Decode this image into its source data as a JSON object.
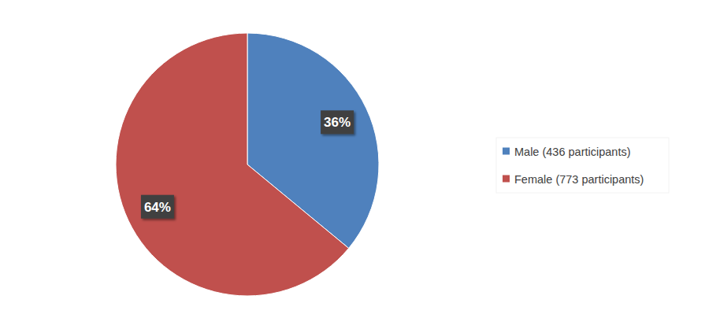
{
  "chart_data": {
    "type": "pie",
    "categories": [
      "Male (436 participants)",
      "Female (773 participants)"
    ],
    "values": [
      36,
      64
    ],
    "value_labels": [
      "36%",
      "64%"
    ],
    "colors": [
      "#4f81bd",
      "#c0504d"
    ],
    "data_labels": true,
    "legend": "right"
  }
}
